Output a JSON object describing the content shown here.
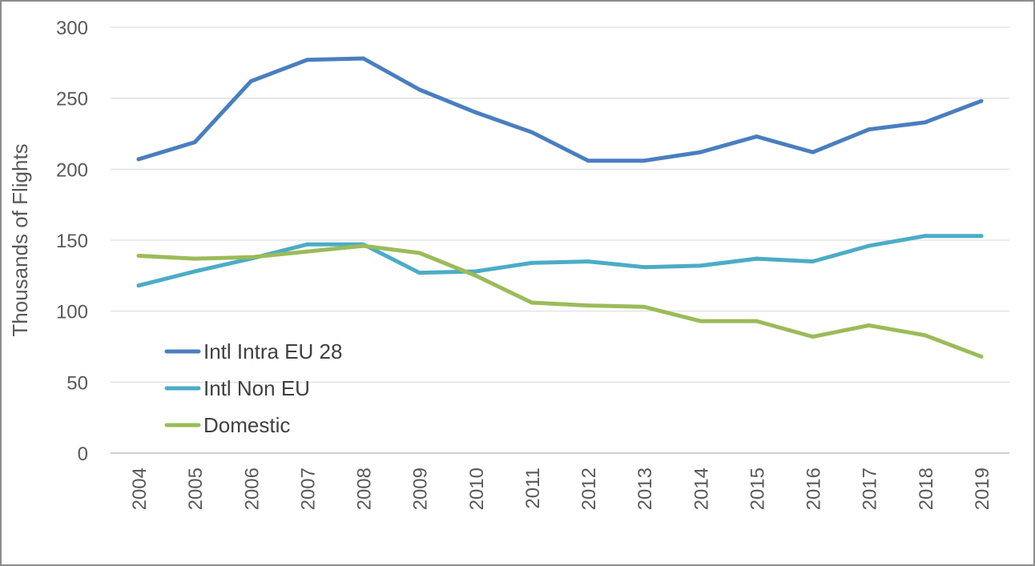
{
  "chart_data": {
    "type": "line",
    "title": "",
    "xlabel": "",
    "ylabel": "Thousands of Flights",
    "ylim": [
      0,
      300
    ],
    "yticks": [
      0,
      50,
      100,
      150,
      200,
      250,
      300
    ],
    "grid": true,
    "legend_position": "left, lower-middle",
    "categories": [
      "2004",
      "2005",
      "2006",
      "2007",
      "2008",
      "2009",
      "2010",
      "2011",
      "2012",
      "2013",
      "2014",
      "2015",
      "2016",
      "2017",
      "2018",
      "2019"
    ],
    "series": [
      {
        "name": "Intl Intra EU 28",
        "color": "#4a7ebf",
        "values": [
          207,
          219,
          262,
          277,
          278,
          256,
          240,
          226,
          206,
          206,
          212,
          223,
          212,
          228,
          233,
          248
        ]
      },
      {
        "name": "Intl Non EU",
        "color": "#4bacc6",
        "values": [
          118,
          128,
          137,
          147,
          147,
          127,
          128,
          134,
          135,
          131,
          132,
          137,
          135,
          146,
          153,
          153
        ]
      },
      {
        "name": "Domestic",
        "color": "#9bbb59",
        "values": [
          139,
          137,
          138,
          142,
          146,
          141,
          125,
          106,
          104,
          103,
          93,
          93,
          82,
          90,
          83,
          68
        ]
      }
    ]
  }
}
